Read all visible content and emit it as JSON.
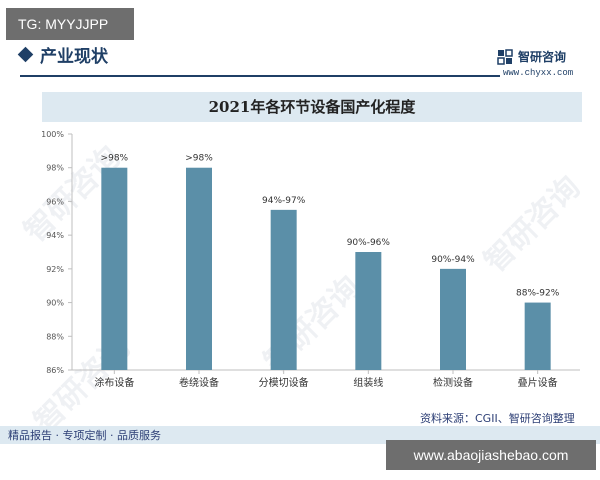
{
  "badge": {
    "tg": "TG: MYYJJPP",
    "url": "www.abaojiashebao.com"
  },
  "header": {
    "section_title": "产业现状",
    "brand_name": "智研咨询",
    "brand_url": "www.chyxx.com"
  },
  "footer": {
    "source": "资料来源：CGII、智研咨询整理",
    "tagline": "精品报告 · 专项定制 · 品质服务"
  },
  "watermark": "智研咨询",
  "colors": {
    "bar": "#5b8fa8",
    "accent": "#1f3f66",
    "title_bg": "#dde9f1"
  },
  "chart_data": {
    "type": "bar",
    "title": "2021年各环节设备国产化程度",
    "categories": [
      "涂布设备",
      "卷绕设备",
      "分模切设备",
      "组装线",
      "检测设备",
      "叠片设备"
    ],
    "values": [
      98,
      98,
      95.5,
      93,
      92,
      90
    ],
    "data_labels": [
      ">98%",
      ">98%",
      "94%-97%",
      "90%-96%",
      "90%-94%",
      "88%-92%"
    ],
    "ylim": [
      86,
      100
    ],
    "yticks": [
      86,
      88,
      90,
      92,
      94,
      96,
      98,
      100
    ],
    "ytick_labels": [
      "86%",
      "88%",
      "90%",
      "92%",
      "94%",
      "96%",
      "98%",
      "100%"
    ],
    "xlabel": "",
    "ylabel": "",
    "grid": false
  }
}
